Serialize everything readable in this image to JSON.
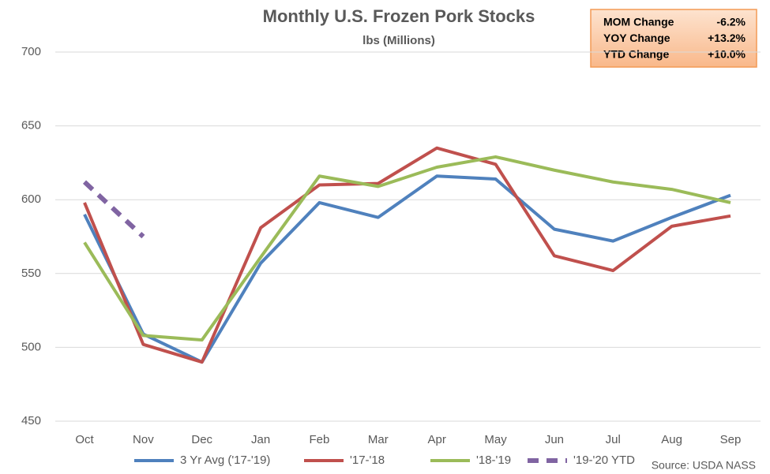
{
  "chart_data": {
    "type": "line",
    "title": "Monthly U.S. Frozen Pork Stocks",
    "subtitle": "lbs (Millions)",
    "categories": [
      "Oct",
      "Nov",
      "Dec",
      "Jan",
      "Feb",
      "Mar",
      "Apr",
      "May",
      "Jun",
      "Jul",
      "Aug",
      "Sep"
    ],
    "series": [
      {
        "name": "3 Yr Avg ('17-'19)",
        "color": "#4f81bd",
        "values": [
          590,
          509,
          490,
          557,
          598,
          588,
          616,
          614,
          580,
          572,
          588,
          603
        ]
      },
      {
        "name": "'17-'18",
        "color": "#c0504d",
        "values": [
          598,
          502,
          490,
          581,
          610,
          611,
          635,
          624,
          562,
          552,
          582,
          589
        ]
      },
      {
        "name": "'18-'19",
        "color": "#9bbb59",
        "values": [
          571,
          508,
          505,
          561,
          616,
          609,
          622,
          629,
          620,
          612,
          607,
          598
        ]
      },
      {
        "name": "'19-'20 YTD",
        "color": "#8064a2",
        "dashed": true,
        "values": [
          612,
          575,
          null,
          null,
          null,
          null,
          null,
          null,
          null,
          null,
          null,
          null
        ]
      }
    ],
    "ylim": [
      450,
      700
    ],
    "yticks": [
      450,
      500,
      550,
      600,
      650,
      700
    ],
    "grid": true,
    "info_box": [
      [
        "MOM Change",
        "-6.2%"
      ],
      [
        "YOY Change",
        "+13.2%"
      ],
      [
        "YTD Change",
        "+10.0%"
      ]
    ],
    "source": "Source: USDA NASS"
  }
}
